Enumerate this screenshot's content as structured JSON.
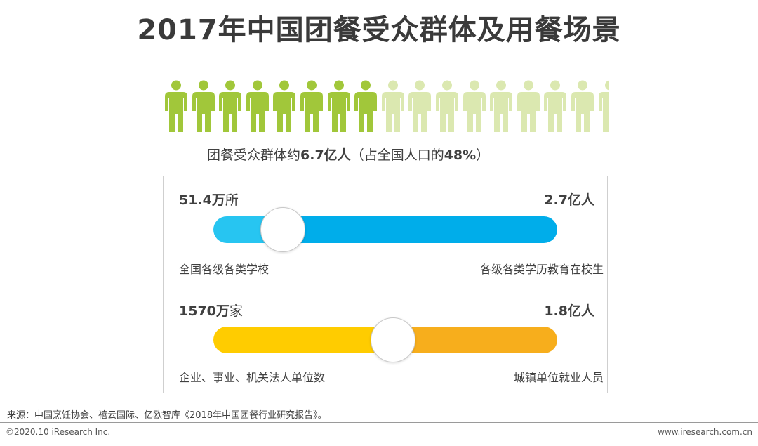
{
  "title": "2017年中国团餐受众群体及用餐场景",
  "colors": {
    "people_active": "#a1c73a",
    "people_inactive": "#dbe8b0",
    "bar1_left": "#27c5f1",
    "bar1_right": "#00adea",
    "bar2_left": "#ffcc00",
    "bar2_right": "#f7ae1c"
  },
  "chart_data": {
    "type": "bar",
    "summary": {
      "prefix": "团餐受众群体约",
      "value": "6.7亿人",
      "suffix": "（占全国人口的",
      "percent": "48%",
      "close": "）"
    },
    "pictogram": {
      "icons": 17,
      "filled": 8,
      "share": 0.48
    },
    "rows": [
      {
        "left_value_num": "51.4",
        "left_value_unit_bold": "万",
        "left_value_unit": "所",
        "left_label": "全国各级各类学校",
        "right_value_num": "2.7",
        "right_value_unit_bold": "亿人",
        "right_label": "各级各类学历教育在校生"
      },
      {
        "left_value_num": "1570",
        "left_value_unit_bold": "万",
        "left_value_unit": "家",
        "left_label": "企业、事业、机关法人单位数",
        "right_value_num": "1.8",
        "right_value_unit_bold": "亿人",
        "right_label": "城镇单位就业人员"
      }
    ]
  },
  "source": "来源：中国烹饪协会、禧云国际、亿欧智库《2018年中国团餐行业研究报告》。",
  "footer": {
    "copyright": "©2020.10 iResearch Inc.",
    "website": "www.iresearch.com.cn"
  }
}
